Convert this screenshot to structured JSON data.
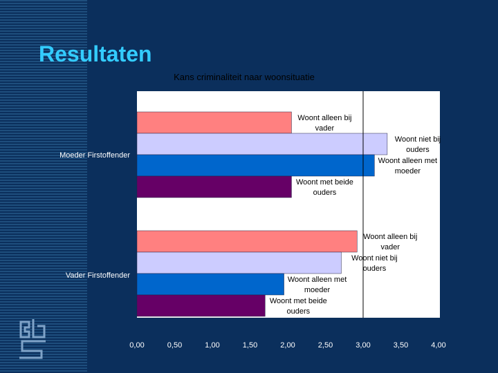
{
  "slide": {
    "title": "Resultaten"
  },
  "chart_data": {
    "type": "bar",
    "orientation": "horizontal",
    "title": "Kans criminaliteit naar woonsituatie",
    "xlim": [
      0,
      4
    ],
    "x_ticks": [
      "0,00",
      "0,50",
      "1,00",
      "1,50",
      "2,00",
      "2,50",
      "3,00",
      "3,50",
      "4,00"
    ],
    "reference_line": 3.0,
    "groups": [
      {
        "name": "Moeder Firstoffender",
        "bars": [
          {
            "label": [
              "Woont alleen bij",
              "vader"
            ],
            "value": 2.05,
            "color": "#ff8080"
          },
          {
            "label": [
              "Woont niet bij",
              "ouders"
            ],
            "value": 3.32,
            "color": "#ccccff"
          },
          {
            "label": [
              "Woont alleen met",
              "moeder"
            ],
            "value": 3.15,
            "color": "#0066cc"
          },
          {
            "label": [
              "Woont met beide",
              "ouders"
            ],
            "value": 2.05,
            "color": "#660066"
          }
        ]
      },
      {
        "name": "Vader Firstoffender",
        "bars": [
          {
            "label": [
              "Woont alleen bij",
              "vader"
            ],
            "value": 2.92,
            "color": "#ff8080"
          },
          {
            "label": [
              "Woont niet bij",
              "ouders"
            ],
            "value": 2.71,
            "color": "#ccccff"
          },
          {
            "label": [
              "Woont alleen met",
              "moeder"
            ],
            "value": 1.95,
            "color": "#0066cc"
          },
          {
            "label": [
              "Woont met beide",
              "ouders"
            ],
            "value": 1.7,
            "color": "#660066"
          }
        ]
      }
    ]
  },
  "logo": {
    "icon": "cbs-logo-icon"
  }
}
